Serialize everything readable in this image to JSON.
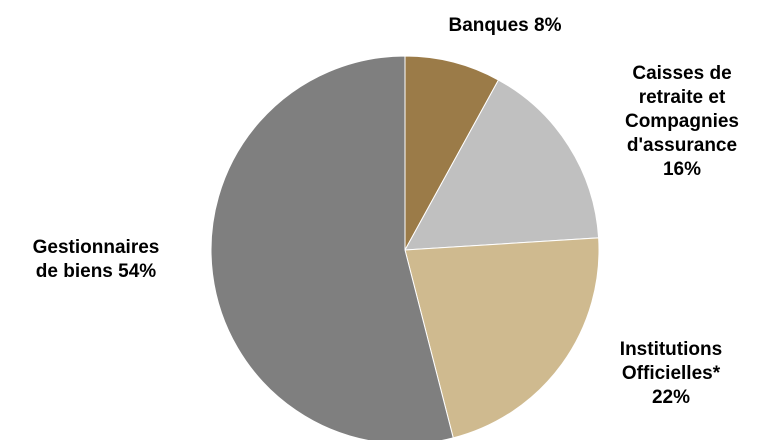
{
  "chart_data": {
    "type": "pie",
    "title": "",
    "start_angle_deg": 0,
    "direction": "clockwise",
    "slices": [
      {
        "label": "Banques",
        "value": 8,
        "display": "Banques 8%",
        "color": "#9b7b48"
      },
      {
        "label": "Caisses de retraite et Compagnies d'assurance",
        "value": 16,
        "display": "Caisses de\nretraite et\nCompagnies\nd'assurance\n16%",
        "color": "#c0c0c0"
      },
      {
        "label": "Institutions Officielles*",
        "value": 22,
        "display": "Institutions\nOfficielles*\n22%",
        "color": "#cfba8f"
      },
      {
        "label": "Gestionnaires de biens",
        "value": 54,
        "display": "Gestionnaires\nde biens 54%",
        "color": "#7f7f7f"
      }
    ]
  }
}
